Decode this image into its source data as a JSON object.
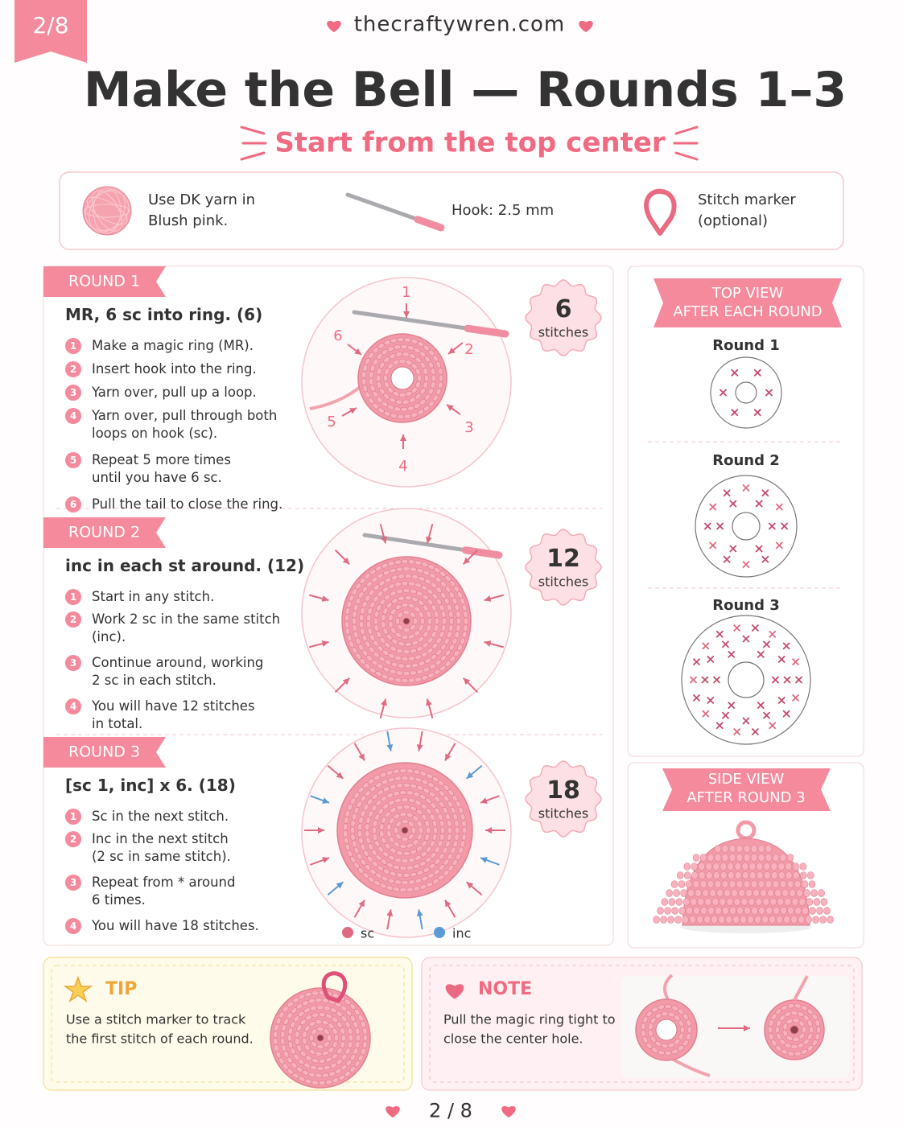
{
  "page_badge": "2/8",
  "header": {
    "site": "thecraftywren.com",
    "title": "Make the Bell — Rounds 1–3",
    "subtitle": "Start from the top center"
  },
  "materials": [
    [
      "Use DK yarn in",
      "Blush pink."
    ],
    [
      "Hook: 2.5 mm"
    ],
    [
      "Stitch marker",
      "(optional)"
    ]
  ],
  "rounds": [
    {
      "label": "ROUND 1",
      "pattern": "MR, 6 sc into ring. (6)",
      "steps": [
        {
          "n": 1,
          "lines": [
            "Make a magic ring (MR)."
          ]
        },
        {
          "n": 2,
          "lines": [
            "Insert hook into the ring."
          ]
        },
        {
          "n": 3,
          "lines": [
            "Yarn over, pull up a loop."
          ]
        },
        {
          "n": 4,
          "lines": [
            "Yarn over, pull through both",
            "loops on hook (sc)."
          ]
        },
        {
          "n": 5,
          "lines": [
            "Repeat 5 more times",
            "until you have 6 sc."
          ]
        },
        {
          "n": 6,
          "lines": [
            "Pull the tail to close the ring."
          ]
        }
      ],
      "count": 6,
      "count_unit": "stitches",
      "stitch_numbers": [
        1,
        2,
        3,
        4,
        5,
        6
      ]
    },
    {
      "label": "ROUND 2",
      "pattern": "inc in each st around. (12)",
      "steps": [
        {
          "n": 1,
          "lines": [
            "Start in any stitch."
          ]
        },
        {
          "n": 2,
          "lines": [
            "Work 2 sc in the same stitch",
            "(inc)."
          ]
        },
        {
          "n": 3,
          "lines": [
            "Continue around, working",
            "2 sc in each stitch."
          ]
        },
        {
          "n": 4,
          "lines": [
            "You will have 12 stitches",
            "in total."
          ]
        }
      ],
      "count": 12,
      "count_unit": "stitches"
    },
    {
      "label": "ROUND 3",
      "pattern": "[sc 1, inc] x 6. (18)",
      "steps": [
        {
          "n": 1,
          "lines": [
            "Sc in the next stitch."
          ]
        },
        {
          "n": 2,
          "lines": [
            "Inc in the next stitch",
            "(2 sc in same stitch)."
          ]
        },
        {
          "n": 3,
          "lines": [
            "Repeat from * around",
            "6 times."
          ]
        },
        {
          "n": 4,
          "lines": [
            "You will have 18 stitches."
          ]
        }
      ],
      "count": 18,
      "count_unit": "stitches"
    }
  ],
  "legend": [
    "sc",
    "inc"
  ],
  "top_view": {
    "title": [
      "TOP VIEW",
      "AFTER EACH ROUND"
    ],
    "rounds": [
      "Round 1",
      "Round 2",
      "Round 3"
    ]
  },
  "side_view": {
    "title": [
      "SIDE VIEW",
      "AFTER ROUND 3"
    ]
  },
  "tip": {
    "title": "TIP",
    "lines": [
      "Use a stitch marker to track",
      "the first stitch of each round."
    ]
  },
  "note": {
    "title": "NOTE",
    "lines": [
      "Pull the magic ring tight to",
      "close the center hole."
    ]
  },
  "footer": "2 / 8"
}
